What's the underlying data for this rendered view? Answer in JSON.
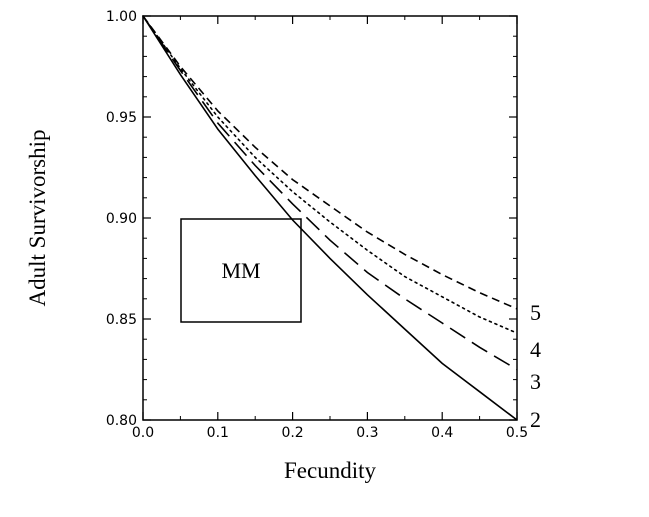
{
  "chart_data": {
    "type": "line",
    "title": "",
    "xlabel": "Fecundity",
    "ylabel": "Adult Survivorship",
    "xlim": [
      0.0,
      0.5
    ],
    "ylim": [
      0.8,
      1.0
    ],
    "x_ticks": [
      "0.0",
      "0.1",
      "0.2",
      "0.3",
      "0.4",
      "0.5"
    ],
    "y_ticks": [
      "0.80",
      "0.85",
      "0.90",
      "0.95",
      "1.00"
    ],
    "grid": false,
    "legend": "none",
    "annotation": "MM",
    "x": [
      0.0,
      0.05,
      0.1,
      0.15,
      0.2,
      0.25,
      0.3,
      0.35,
      0.4,
      0.45,
      0.5
    ],
    "series": [
      {
        "name": "2",
        "style": "solid",
        "values": [
          1.0,
          0.971,
          0.944,
          0.921,
          0.899,
          0.88,
          0.862,
          0.845,
          0.828,
          0.814,
          0.8
        ]
      },
      {
        "name": "3",
        "style": "longdash",
        "values": [
          1.0,
          0.973,
          0.947,
          0.926,
          0.907,
          0.889,
          0.873,
          0.86,
          0.848,
          0.836,
          0.825
        ]
      },
      {
        "name": "4",
        "style": "dotted",
        "values": [
          1.0,
          0.974,
          0.95,
          0.93,
          0.913,
          0.898,
          0.884,
          0.871,
          0.861,
          0.851,
          0.843
        ]
      },
      {
        "name": "5",
        "style": "shortdash",
        "values": [
          1.0,
          0.975,
          0.953,
          0.935,
          0.919,
          0.906,
          0.893,
          0.882,
          0.872,
          0.863,
          0.855
        ]
      }
    ]
  }
}
